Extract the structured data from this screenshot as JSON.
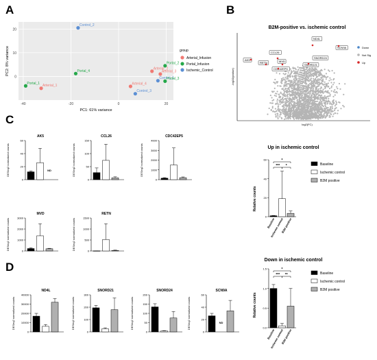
{
  "panel_labels": {
    "a": "A",
    "b": "B",
    "c": "C",
    "d": "D"
  },
  "colors": {
    "arterial": "#f07a74",
    "portal": "#25a84a",
    "ischemic": "#5b8fd4",
    "down": "#4a86c8",
    "notsig": "#b5b5b5",
    "up": "#d62728",
    "baseline": "#000000",
    "ischemic_bar": "#ffffff",
    "b2m_bar": "#b0b0b0"
  },
  "pca": {
    "xlabel": "PC1: 61% variance",
    "ylabel": "PC2: 8% variance",
    "xticks": [
      "-40",
      "-20",
      "0",
      "20"
    ],
    "yticks": [
      "20",
      "10",
      "0"
    ],
    "legend_title": "group",
    "legend": [
      "Arterial_Infusion",
      "Portal_Infusion",
      "Ischemic_Control"
    ],
    "points": [
      {
        "label": "Control_2",
        "g": 2,
        "x": -17,
        "y": 20.5
      },
      {
        "label": "Portal_1",
        "g": 1,
        "x": -39,
        "y": -4
      },
      {
        "label": "Arterial_1",
        "g": 0,
        "x": -32.5,
        "y": -5
      },
      {
        "label": "Portal_4",
        "g": 1,
        "x": -18,
        "y": 1.2
      },
      {
        "label": "Portal_2",
        "g": 1,
        "x": 19.5,
        "y": 4.5
      },
      {
        "label": "Arterial_2",
        "g": 0,
        "x": 14,
        "y": 2.2
      },
      {
        "label": "Arterial_3",
        "g": 0,
        "x": 17.5,
        "y": 1
      },
      {
        "label": "Control_1",
        "g": 2,
        "x": 16.5,
        "y": -1.8
      },
      {
        "label": "Portal_3",
        "g": 1,
        "x": 19.5,
        "y": -2
      },
      {
        "label": "Control_3",
        "g": 2,
        "x": 7,
        "y": -7.3
      },
      {
        "label": "Arterial_4",
        "g": 0,
        "x": 5,
        "y": -4.2
      }
    ]
  },
  "volcano": {
    "title": "B2M-positive vs. ischemic control",
    "xlabel": "log2(FC)",
    "ylabel": "-log10(pvalue)",
    "legend": [
      "Down",
      "Not Sig",
      "Up"
    ],
    "genes": [
      "ND4L",
      "SCN9A",
      "SNORD24",
      "SNORD21",
      "CCL26",
      "MVD",
      "RETN",
      "CDC42EP5",
      "AK5"
    ]
  },
  "panel_c": {
    "ylabel": "DESeq2 normalized counts",
    "nd": "ND",
    "charts": [
      {
        "title": "AK5",
        "ymax": 60,
        "ticks": [
          "60",
          "40",
          "20",
          "0"
        ],
        "values": [
          12,
          26,
          null
        ],
        "err": [
          1.5,
          22,
          0
        ]
      },
      {
        "title": "CCL26",
        "ymax": 150,
        "ticks": [
          "150",
          "100",
          "50",
          "0"
        ],
        "values": [
          27,
          74,
          7
        ],
        "err": [
          18,
          62,
          4
        ]
      },
      {
        "title": "CDC42EP5",
        "ymax": 4000,
        "ticks": [
          "4000",
          "3000",
          "2000",
          "1000",
          "0"
        ],
        "values": [
          150,
          1500,
          200
        ],
        "err": [
          60,
          1750,
          80
        ]
      },
      {
        "title": "MVD",
        "ymax": 3000,
        "ticks": [
          "3000",
          "2000",
          "1000",
          "0"
        ],
        "values": [
          220,
          1380,
          200
        ],
        "err": [
          80,
          1100,
          40
        ]
      },
      {
        "title": "RETN",
        "ymax": 1500,
        "ticks": [
          "1500",
          "1000",
          "500",
          "0"
        ],
        "values": [
          5,
          520,
          25
        ],
        "err": [
          3,
          720,
          15
        ]
      }
    ]
  },
  "panel_d": {
    "ylabel": "DESeq2 normalized counts",
    "nd": "ND",
    "charts": [
      {
        "title": "ND4L",
        "ymax": 40000,
        "ticks": [
          "40000",
          "30000",
          "20000",
          "10000",
          "0"
        ],
        "values": [
          17000,
          6000,
          32000
        ],
        "err": [
          3000,
          2000,
          4000
        ]
      },
      {
        "title": "SNORD21",
        "ymax": 300,
        "ticks": [
          "300",
          "200",
          "100",
          "0"
        ],
        "values": [
          195,
          25,
          180
        ],
        "err": [
          20,
          8,
          95
        ]
      },
      {
        "title": "SNORD24",
        "ymax": 200,
        "ticks": [
          "200",
          "150",
          "100",
          "50",
          "0"
        ],
        "values": [
          135,
          5,
          75
        ],
        "err": [
          17,
          2,
          35
        ]
      },
      {
        "title": "SCN9A",
        "ymax": 60,
        "ticks": [
          "60",
          "40",
          "20",
          "0"
        ],
        "values": [
          26,
          null,
          34
        ],
        "err": [
          4,
          0,
          17
        ]
      }
    ]
  },
  "up_chart": {
    "title": "Up in ischemic control",
    "ylabel": "Relative counts",
    "ymax": 60,
    "ticks": [
      "60",
      "40",
      "20",
      "0"
    ],
    "categories": [
      "Baseline",
      "Ischemic control",
      "B2M positive"
    ],
    "values": [
      1,
      19,
      3.5
    ],
    "err": [
      0.3,
      29,
      2.5
    ],
    "sig": [
      "*",
      "***",
      "*"
    ],
    "legend": [
      "Baseline",
      "Ischemic control",
      "B2M positive"
    ]
  },
  "down_chart": {
    "title": "Down in ischemic control",
    "ylabel": "Relative counts",
    "ymax": 1.5,
    "ticks": [
      "1.5",
      "1.0",
      "0.5",
      "0.0"
    ],
    "categories": [
      "Baseline",
      "Ischemic control",
      "B2M positive"
    ],
    "values": [
      1.0,
      0.05,
      0.55
    ],
    "err": [
      0.1,
      0.06,
      0.45
    ],
    "sig": [
      "*",
      "***",
      "**"
    ],
    "legend": [
      "Baseline",
      "Ischemic control",
      "B2M positive"
    ]
  }
}
